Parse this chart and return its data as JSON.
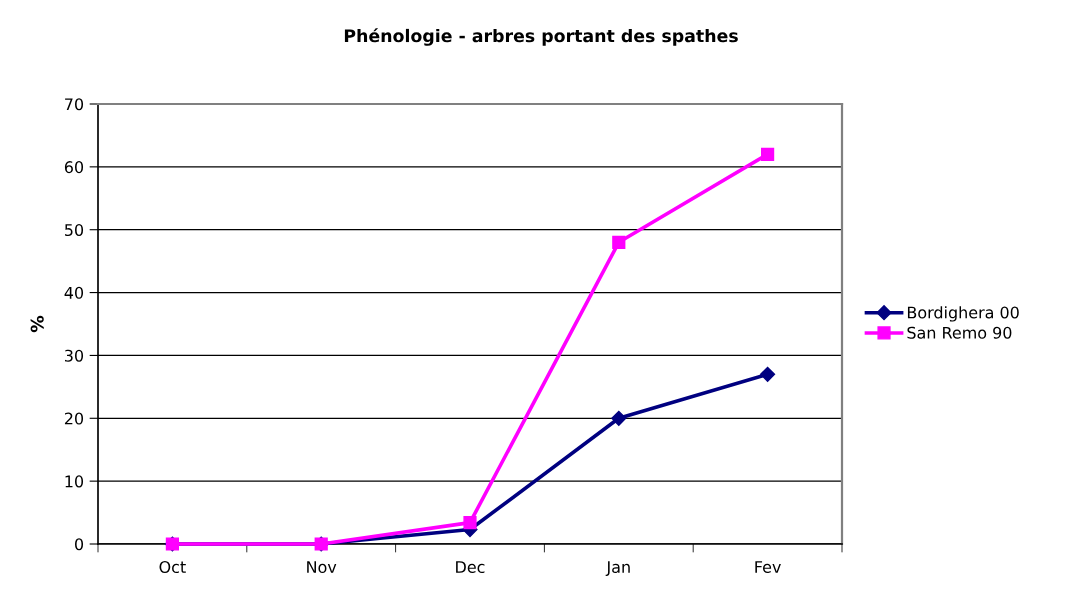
{
  "chart_data": {
    "type": "line",
    "title": "Phénologie - arbres portant des spathes",
    "ylabel": "%",
    "categories": [
      "Oct",
      "Nov",
      "Dec",
      "Jan",
      "Fev"
    ],
    "series": [
      {
        "name": "Bordighera 00",
        "color": "#000080",
        "marker": "diamond",
        "values": [
          0,
          0,
          2.3,
          20,
          27
        ]
      },
      {
        "name": "San Remo 90",
        "color": "#ff00ff",
        "marker": "square",
        "values": [
          0,
          0,
          3.4,
          48,
          62
        ]
      }
    ],
    "ylim": [
      0,
      70
    ],
    "yticks": [
      0,
      10,
      20,
      30,
      40,
      50,
      60,
      70
    ],
    "grid": "y",
    "legend": "right",
    "line_style": "solid"
  }
}
